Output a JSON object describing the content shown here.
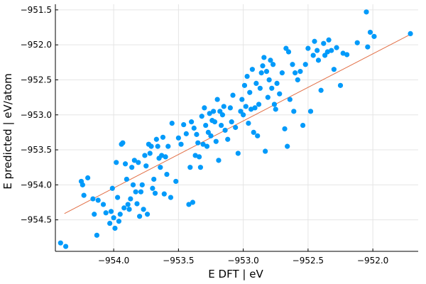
{
  "chart_data": {
    "type": "scatter",
    "xlabel": "E DFT | eV",
    "ylabel": "E predicted | eV/atom",
    "xlim": [
      -954.45,
      -951.65
    ],
    "ylim": [
      -954.95,
      -951.42
    ],
    "xticks": [
      -954.0,
      -953.5,
      -953.0,
      -952.5,
      -952.0
    ],
    "xtick_labels": [
      "−954.0",
      "−953.5",
      "−953.0",
      "−952.5",
      "−952.0"
    ],
    "yticks": [
      -954.5,
      -954.0,
      -953.5,
      -953.0,
      -952.5,
      -952.0,
      -951.5
    ],
    "ytick_labels": [
      "−954.5",
      "−954.0",
      "−953.5",
      "−953.0",
      "−952.5",
      "−952.0",
      "−951.5"
    ],
    "grid": true,
    "colors": {
      "points": "#009AFA",
      "fit_line": "#E26F46",
      "grid": "#E5E5E5",
      "axis": "#000000"
    },
    "fit_line": {
      "x": [
        -954.38,
        -951.71
      ],
      "y": [
        -954.41,
        -951.85
      ]
    },
    "points": [
      [
        -954.41,
        -954.83
      ],
      [
        -954.37,
        -954.88
      ],
      [
        -954.25,
        -953.95
      ],
      [
        -954.24,
        -954.0
      ],
      [
        -954.23,
        -954.15
      ],
      [
        -954.2,
        -953.9
      ],
      [
        -954.16,
        -954.2
      ],
      [
        -954.15,
        -954.42
      ],
      [
        -954.13,
        -954.72
      ],
      [
        -954.12,
        -954.22
      ],
      [
        -954.08,
        -954.28
      ],
      [
        -954.06,
        -954.4
      ],
      [
        -954.03,
        -954.55
      ],
      [
        -954.02,
        -954.38
      ],
      [
        -954.01,
        -954.05
      ],
      [
        -954.0,
        -954.47
      ],
      [
        -953.99,
        -954.62
      ],
      [
        -953.98,
        -953.68
      ],
      [
        -953.97,
        -954.18
      ],
      [
        -953.96,
        -954.52
      ],
      [
        -953.95,
        -954.42
      ],
      [
        -953.94,
        -953.42
      ],
      [
        -953.93,
        -953.4
      ],
      [
        -953.92,
        -954.33
      ],
      [
        -953.91,
        -953.7
      ],
      [
        -953.9,
        -953.92
      ],
      [
        -953.89,
        -954.28
      ],
      [
        -953.88,
        -954.35
      ],
      [
        -953.87,
        -954.2
      ],
      [
        -953.86,
        -953.75
      ],
      [
        -953.85,
        -954.0
      ],
      [
        -953.84,
        -953.65
      ],
      [
        -953.83,
        -954.1
      ],
      [
        -953.82,
        -954.27
      ],
      [
        -953.81,
        -953.68
      ],
      [
        -953.8,
        -954.45
      ],
      [
        -953.79,
        -954.1
      ],
      [
        -953.78,
        -954.0
      ],
      [
        -953.77,
        -954.35
      ],
      [
        -953.76,
        -953.58
      ],
      [
        -953.75,
        -953.73
      ],
      [
        -953.74,
        -954.42
      ],
      [
        -953.73,
        -953.42
      ],
      [
        -953.72,
        -953.55
      ],
      [
        -953.71,
        -953.45
      ],
      [
        -953.7,
        -954.05
      ],
      [
        -953.69,
        -953.92
      ],
      [
        -953.68,
        -954.12
      ],
      [
        -953.67,
        -953.35
      ],
      [
        -953.66,
        -953.45
      ],
      [
        -953.65,
        -953.62
      ],
      [
        -953.64,
        -953.75
      ],
      [
        -953.63,
        -953.58
      ],
      [
        -953.62,
        -953.32
      ],
      [
        -953.61,
        -954.13
      ],
      [
        -953.6,
        -953.6
      ],
      [
        -953.59,
        -953.85
      ],
      [
        -953.58,
        -953.45
      ],
      [
        -953.56,
        -954.18
      ],
      [
        -953.55,
        -953.12
      ],
      [
        -953.52,
        -953.95
      ],
      [
        -953.5,
        -953.33
      ],
      [
        -953.48,
        -953.42
      ],
      [
        -953.46,
        -953.14
      ],
      [
        -953.44,
        -953.27
      ],
      [
        -953.42,
        -954.28
      ],
      [
        -953.41,
        -953.75
      ],
      [
        -953.4,
        -953.1
      ],
      [
        -953.39,
        -954.25
      ],
      [
        -953.38,
        -953.19
      ],
      [
        -953.37,
        -953.58
      ],
      [
        -953.36,
        -953.28
      ],
      [
        -953.35,
        -953.4
      ],
      [
        -953.34,
        -953.6
      ],
      [
        -953.33,
        -953.75
      ],
      [
        -953.32,
        -953.02
      ],
      [
        -953.31,
        -953.42
      ],
      [
        -953.3,
        -952.9
      ],
      [
        -953.29,
        -953.15
      ],
      [
        -953.28,
        -953.45
      ],
      [
        -953.27,
        -953.25
      ],
      [
        -953.26,
        -952.98
      ],
      [
        -953.25,
        -953.3
      ],
      [
        -953.24,
        -953.08
      ],
      [
        -953.23,
        -952.95
      ],
      [
        -953.22,
        -953.1
      ],
      [
        -953.21,
        -953.38
      ],
      [
        -953.2,
        -952.78
      ],
      [
        -953.19,
        -953.65
      ],
      [
        -953.18,
        -952.95
      ],
      [
        -953.17,
        -953.15
      ],
      [
        -953.16,
        -953.0
      ],
      [
        -953.15,
        -952.88
      ],
      [
        -953.14,
        -953.22
      ],
      [
        -953.12,
        -953.35
      ],
      [
        -953.1,
        -952.9
      ],
      [
        -953.09,
        -953.1
      ],
      [
        -953.08,
        -952.72
      ],
      [
        -953.06,
        -953.18
      ],
      [
        -953.04,
        -953.55
      ],
      [
        -953.02,
        -952.95
      ],
      [
        -953.01,
        -952.78
      ],
      [
        -953.0,
        -953.0
      ],
      [
        -952.99,
        -952.58
      ],
      [
        -952.98,
        -952.88
      ],
      [
        -952.97,
        -952.45
      ],
      [
        -952.96,
        -953.12
      ],
      [
        -952.95,
        -952.68
      ],
      [
        -952.94,
        -952.92
      ],
      [
        -952.93,
        -952.35
      ],
      [
        -952.92,
        -953.25
      ],
      [
        -952.91,
        -952.9
      ],
      [
        -952.9,
        -952.55
      ],
      [
        -952.89,
        -953.3
      ],
      [
        -952.88,
        -952.85
      ],
      [
        -952.87,
        -952.62
      ],
      [
        -952.86,
        -952.4
      ],
      [
        -952.85,
        -952.3
      ],
      [
        -952.84,
        -952.18
      ],
      [
        -952.83,
        -953.52
      ],
      [
        -952.82,
        -952.38
      ],
      [
        -952.81,
        -952.75
      ],
      [
        -952.8,
        -952.5
      ],
      [
        -952.79,
        -952.22
      ],
      [
        -952.78,
        -952.62
      ],
      [
        -952.77,
        -952.28
      ],
      [
        -952.76,
        -952.85
      ],
      [
        -952.75,
        -952.92
      ],
      [
        -952.74,
        -952.55
      ],
      [
        -952.72,
        -952.7
      ],
      [
        -952.7,
        -952.4
      ],
      [
        -952.68,
        -953.2
      ],
      [
        -952.67,
        -952.05
      ],
      [
        -952.66,
        -953.45
      ],
      [
        -952.65,
        -952.1
      ],
      [
        -952.64,
        -952.78
      ],
      [
        -952.62,
        -952.28
      ],
      [
        -952.61,
        -952.95
      ],
      [
        -952.6,
        -952.4
      ],
      [
        -952.58,
        -952.5
      ],
      [
        -952.56,
        -952.38
      ],
      [
        -952.54,
        -953.15
      ],
      [
        -952.52,
        -952.28
      ],
      [
        -952.5,
        -952.05
      ],
      [
        -952.48,
        -952.95
      ],
      [
        -952.46,
        -952.15
      ],
      [
        -952.45,
        -951.95
      ],
      [
        -952.43,
        -952.08
      ],
      [
        -952.42,
        -952.22
      ],
      [
        -952.4,
        -952.65
      ],
      [
        -952.38,
        -951.98
      ],
      [
        -952.37,
        -952.15
      ],
      [
        -952.35,
        -952.1
      ],
      [
        -952.34,
        -951.93
      ],
      [
        -952.32,
        -952.08
      ],
      [
        -952.3,
        -952.35
      ],
      [
        -952.28,
        -952.04
      ],
      [
        -952.25,
        -952.58
      ],
      [
        -952.23,
        -952.12
      ],
      [
        -952.2,
        -952.14
      ],
      [
        -952.12,
        -951.97
      ],
      [
        -952.05,
        -951.53
      ],
      [
        -952.04,
        -952.03
      ],
      [
        -952.02,
        -951.82
      ],
      [
        -951.99,
        -951.88
      ],
      [
        -951.71,
        -951.84
      ]
    ]
  }
}
